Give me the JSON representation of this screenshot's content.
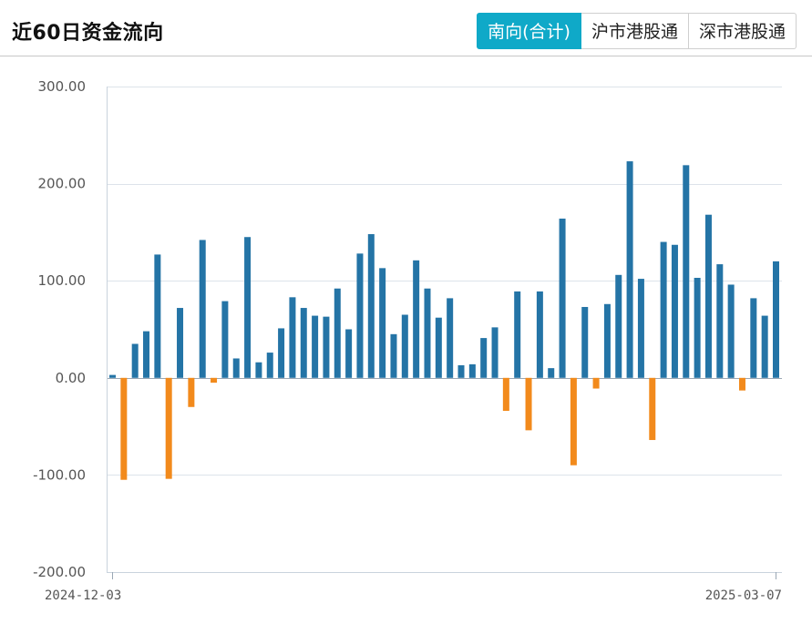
{
  "title": "近60日资金流向",
  "tabs": [
    {
      "label": "南向(合计)",
      "active": true
    },
    {
      "label": "沪市港股通",
      "active": false
    },
    {
      "label": "深市港股通",
      "active": false
    }
  ],
  "colors": {
    "positive": "#2474a6",
    "negative": "#f28a1c",
    "accent": "#0fa9c8"
  },
  "chart_data": {
    "type": "bar",
    "ylim": [
      -200,
      300
    ],
    "yticks": [
      300,
      200,
      100,
      0,
      -100,
      -200
    ],
    "ytick_labels": [
      "300.00",
      "200.00",
      "100.00",
      "0.00",
      "-100.00",
      "-200.00"
    ],
    "x_start_label": "2024-12-03",
    "x_end_label": "2025-03-07",
    "grid": true,
    "values": [
      3,
      -105,
      35,
      48,
      127,
      -104,
      72,
      -30,
      142,
      -5,
      79,
      20,
      145,
      16,
      26,
      51,
      83,
      72,
      64,
      63,
      92,
      50,
      128,
      148,
      113,
      45,
      65,
      121,
      92,
      62,
      82,
      13,
      14,
      41,
      52,
      -34,
      89,
      -54,
      89,
      10,
      164,
      -90,
      73,
      -11,
      76,
      106,
      223,
      102,
      -64,
      140,
      137,
      219,
      103,
      168,
      117,
      96,
      -13,
      82,
      64,
      120
    ]
  }
}
